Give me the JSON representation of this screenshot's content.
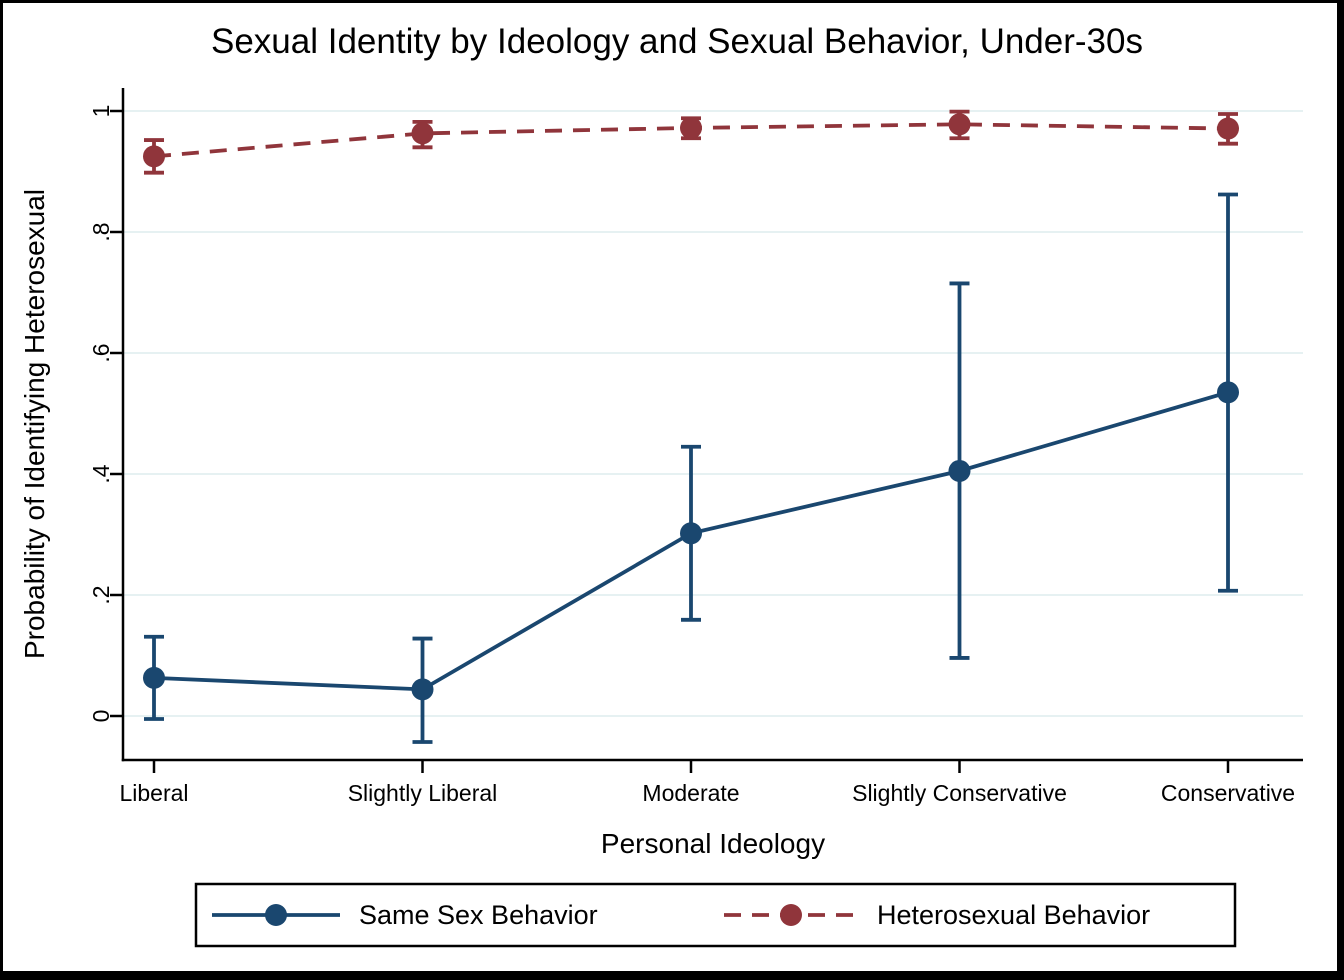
{
  "figure": {
    "background_color": "#ffffff",
    "frame_color": "#000000"
  },
  "chart_data": {
    "type": "line",
    "title": "Sexual Identity by Ideology and Sexual Behavior, Under-30s",
    "xlabel": "Personal Ideology",
    "ylabel": "Probability of Identifying Heterosexual",
    "categories": [
      "Liberal",
      "Slightly Liberal",
      "Moderate",
      "Slightly Conservative",
      "Conservative"
    ],
    "yticks": [
      {
        "v": 0,
        "label": "0"
      },
      {
        "v": 0.2,
        "label": ".2"
      },
      {
        "v": 0.4,
        "label": ".4"
      },
      {
        "v": 0.6,
        "label": ".6"
      },
      {
        "v": 0.8,
        "label": ".8"
      },
      {
        "v": 1,
        "label": "1"
      }
    ],
    "ylim": [
      -0.073,
      1.038
    ],
    "grid": true,
    "grid_color": "#e6f1f2",
    "axis_color": "#000000",
    "legend_position": "bottom",
    "series": [
      {
        "name": "Same Sex Behavior",
        "color": "#1a476f",
        "line_style": "solid",
        "marker": "circle",
        "values": [
          0.063,
          0.044,
          0.302,
          0.405,
          0.535
        ],
        "ci_low": [
          -0.005,
          -0.043,
          0.159,
          0.096,
          0.207
        ],
        "ci_high": [
          0.131,
          0.128,
          0.445,
          0.715,
          0.862
        ]
      },
      {
        "name": "Heterosexual Behavior",
        "color": "#90353b",
        "line_style": "dashed",
        "marker": "circle",
        "values": [
          0.925,
          0.963,
          0.972,
          0.978,
          0.971
        ],
        "ci_low": [
          0.898,
          0.94,
          0.955,
          0.955,
          0.946
        ],
        "ci_high": [
          0.952,
          0.982,
          0.988,
          0.999,
          0.995
        ]
      }
    ]
  }
}
